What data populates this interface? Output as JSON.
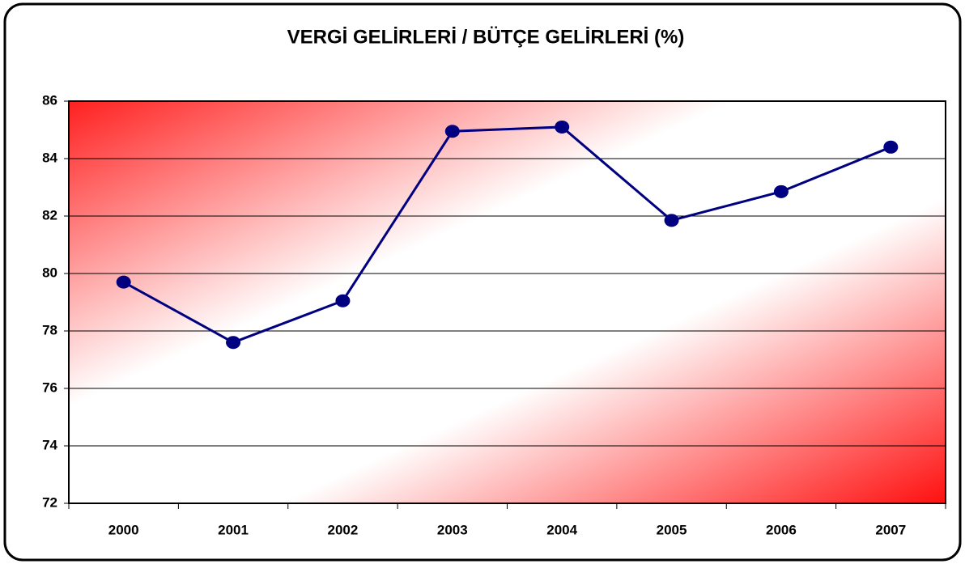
{
  "chart_data": {
    "type": "line",
    "title": "VERGİ GELİRLERİ / BÜTÇE GELİRLERİ (%)",
    "categories": [
      "2000",
      "2001",
      "2002",
      "2003",
      "2004",
      "2005",
      "2006",
      "2007"
    ],
    "values": [
      79.7,
      77.6,
      79.05,
      84.95,
      85.1,
      81.85,
      82.85,
      84.4
    ],
    "color": "#000080",
    "ylim": [
      72,
      86
    ],
    "yticks": [
      72,
      74,
      76,
      78,
      80,
      82,
      84,
      86
    ],
    "grid": true
  }
}
